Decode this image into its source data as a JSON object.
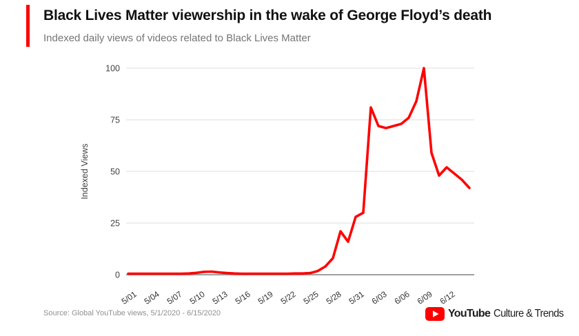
{
  "header": {
    "title": "Black Lives Matter viewership in the wake of George Floyd’s death",
    "subtitle": "Indexed daily views of videos related to Black Lives Matter",
    "accent_color": "#ff0000"
  },
  "chart_data": {
    "type": "line",
    "title": "Black Lives Matter viewership in the wake of George Floyd’s death",
    "subtitle": "Indexed daily views of videos related to Black Lives Matter",
    "xlabel": "",
    "ylabel": "Indexed Views",
    "ylim": [
      0,
      100
    ],
    "yticks": [
      0,
      25,
      50,
      75,
      100
    ],
    "grid": true,
    "legend": false,
    "line_color": "#ff0000",
    "x": [
      "5/01",
      "5/02",
      "5/03",
      "5/04",
      "5/05",
      "5/06",
      "5/07",
      "5/08",
      "5/09",
      "5/10",
      "5/11",
      "5/12",
      "5/13",
      "5/14",
      "5/15",
      "5/16",
      "5/17",
      "5/18",
      "5/19",
      "5/20",
      "5/21",
      "5/22",
      "5/23",
      "5/24",
      "5/25",
      "5/26",
      "5/27",
      "5/28",
      "5/29",
      "5/30",
      "5/31",
      "6/01",
      "6/02",
      "6/03",
      "6/04",
      "6/05",
      "6/06",
      "6/07",
      "6/08",
      "6/09",
      "6/10",
      "6/11",
      "6/12",
      "6/13",
      "6/14",
      "6/15"
    ],
    "x_tick_labels": [
      "5/01",
      "5/04",
      "5/07",
      "5/10",
      "5/13",
      "5/16",
      "5/19",
      "5/22",
      "5/25",
      "5/28",
      "5/31",
      "6/03",
      "6/06",
      "6/09",
      "6/12"
    ],
    "series": [
      {
        "name": "Indexed Views",
        "color": "#ff0000",
        "values": [
          0.5,
          0.5,
          0.5,
          0.5,
          0.5,
          0.5,
          0.5,
          0.5,
          0.6,
          0.9,
          1.4,
          1.5,
          1.1,
          0.8,
          0.6,
          0.5,
          0.5,
          0.5,
          0.5,
          0.5,
          0.5,
          0.5,
          0.6,
          0.6,
          0.8,
          1.8,
          4,
          8,
          21,
          16,
          28,
          30,
          81,
          72,
          71,
          72,
          73,
          76,
          84,
          100,
          59,
          48,
          52,
          49,
          46,
          42
        ]
      }
    ]
  },
  "footer": {
    "source": "Source: Global YouTube views, 5/1/2020 - 6/15/2020",
    "logo": {
      "brand": "YouTube",
      "suffix": "Culture & Trends",
      "icon": "youtube-play-icon",
      "icon_color": "#ff0000"
    }
  }
}
